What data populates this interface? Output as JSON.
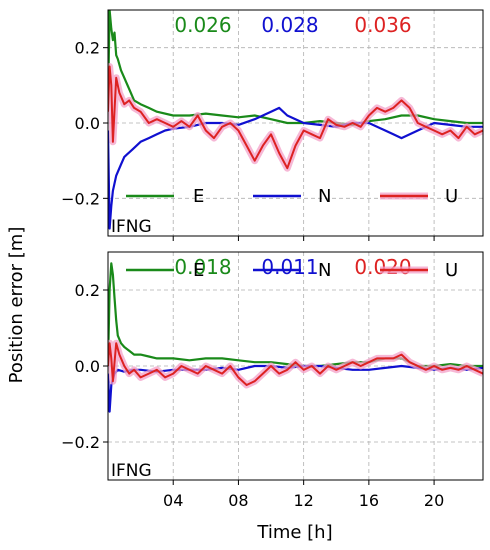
{
  "chart_data": {
    "type": "line",
    "ylabel": "Position error [m]",
    "xlabel": "Time [h]",
    "xlim": [
      0,
      23
    ],
    "ylim": [
      -0.3,
      0.3
    ],
    "x_ticks": [
      4,
      8,
      12,
      16,
      20
    ],
    "x_tick_labels": [
      "04",
      "08",
      "12",
      "16",
      "20"
    ],
    "y_ticks": [
      -0.2,
      0.0,
      0.2
    ],
    "y_tick_labels": [
      "−0.2",
      "0.0",
      "0.2"
    ],
    "grid": true,
    "legend_placement": "lower-center",
    "colors": {
      "E": "#1a8a1a",
      "N": "#1010d0",
      "U": "#dd2222",
      "U_shade": "#f3a0c8"
    },
    "panels": [
      {
        "label": "IFNG",
        "rms": [
          "0.026",
          "0.028",
          "0.036"
        ],
        "series": [
          {
            "name": "E",
            "x": [
              0,
              0.1,
              0.2,
              0.3,
              0.4,
              0.5,
              0.6,
              0.8,
              1,
              1.3,
              1.6,
              2,
              2.5,
              3,
              4,
              5,
              6,
              7,
              8,
              9,
              10,
              11,
              12,
              13,
              14,
              15,
              16,
              17,
              18,
              19,
              20,
              21,
              22,
              23
            ],
            "y": [
              0.05,
              0.3,
              0.25,
              0.22,
              0.24,
              0.18,
              0.17,
              0.14,
              0.12,
              0.09,
              0.06,
              0.05,
              0.04,
              0.03,
              0.02,
              0.02,
              0.025,
              0.02,
              0.015,
              0.02,
              0.01,
              0.0,
              0.0,
              0.005,
              0.0,
              -0.005,
              0.005,
              0.01,
              0.02,
              0.02,
              0.01,
              0.005,
              0.0,
              0.0
            ]
          },
          {
            "name": "N",
            "x": [
              0,
              0.1,
              0.2,
              0.3,
              0.5,
              0.8,
              1,
              1.5,
              2,
              2.5,
              3,
              3.5,
              4,
              5,
              6,
              7,
              8,
              9,
              10,
              10.5,
              11,
              12,
              13,
              14,
              15,
              16,
              17,
              17.5,
              18,
              19,
              20,
              21,
              22,
              23
            ],
            "y": [
              -0.02,
              -0.28,
              -0.22,
              -0.18,
              -0.14,
              -0.11,
              -0.09,
              -0.07,
              -0.05,
              -0.04,
              -0.03,
              -0.02,
              -0.015,
              -0.01,
              0.0,
              0.0,
              -0.005,
              0.01,
              0.03,
              0.04,
              0.02,
              0.0,
              -0.005,
              -0.01,
              0.0,
              0.0,
              -0.02,
              -0.03,
              -0.04,
              -0.02,
              0.0,
              -0.005,
              -0.01,
              -0.01
            ]
          },
          {
            "name": "U",
            "x": [
              0,
              0.1,
              0.2,
              0.3,
              0.5,
              0.7,
              1,
              1.3,
              1.6,
              2,
              2.5,
              3,
              3.5,
              4,
              4.5,
              5,
              5.5,
              6,
              6.5,
              7,
              7.5,
              8,
              8.5,
              9,
              9.5,
              10,
              10.5,
              11,
              11.5,
              12,
              12.5,
              13,
              13.5,
              14,
              14.5,
              15,
              15.5,
              16,
              16.5,
              17,
              17.5,
              18,
              18.5,
              19,
              19.5,
              20,
              20.5,
              21,
              21.5,
              22,
              22.5,
              23
            ],
            "y": [
              0.03,
              0.15,
              0.1,
              -0.05,
              0.12,
              0.08,
              0.05,
              0.06,
              0.04,
              0.03,
              0.0,
              0.01,
              0.0,
              -0.01,
              0.005,
              -0.01,
              0.02,
              -0.02,
              -0.04,
              -0.01,
              0.0,
              -0.02,
              -0.06,
              -0.1,
              -0.06,
              -0.03,
              -0.08,
              -0.12,
              -0.06,
              -0.02,
              -0.03,
              -0.04,
              0.01,
              -0.005,
              -0.01,
              0.0,
              -0.01,
              0.02,
              0.04,
              0.03,
              0.04,
              0.06,
              0.04,
              0.0,
              -0.01,
              -0.02,
              -0.03,
              -0.02,
              -0.04,
              -0.01,
              -0.03,
              -0.02
            ]
          }
        ]
      },
      {
        "label": "IFNG",
        "rms": [
          "0.018",
          "0.011",
          "0.020"
        ],
        "series": [
          {
            "name": "E",
            "x": [
              0,
              0.1,
              0.2,
              0.3,
              0.4,
              0.5,
              0.6,
              0.8,
              1,
              1.3,
              1.6,
              2,
              2.5,
              3,
              4,
              5,
              6,
              7,
              8,
              9,
              10,
              11,
              12,
              13,
              14,
              15,
              16,
              17,
              18,
              19,
              20,
              21,
              22,
              23
            ],
            "y": [
              0.0,
              0.2,
              0.27,
              0.24,
              0.18,
              0.12,
              0.08,
              0.06,
              0.05,
              0.04,
              0.03,
              0.03,
              0.025,
              0.02,
              0.02,
              0.015,
              0.02,
              0.02,
              0.015,
              0.01,
              0.01,
              0.005,
              0.0,
              0.0,
              0.005,
              0.01,
              0.01,
              0.02,
              0.02,
              0.0,
              0.0,
              0.005,
              0.0,
              0.0
            ]
          },
          {
            "name": "N",
            "x": [
              0,
              0.1,
              0.2,
              0.4,
              0.6,
              1,
              1.5,
              2,
              3,
              4,
              5,
              6,
              7,
              8,
              9,
              10,
              11,
              12,
              13,
              14,
              15,
              16,
              17,
              18,
              19,
              20,
              21,
              22,
              23
            ],
            "y": [
              -0.02,
              -0.12,
              -0.05,
              -0.02,
              -0.01,
              -0.015,
              -0.01,
              -0.01,
              -0.015,
              -0.01,
              -0.01,
              -0.01,
              -0.005,
              -0.01,
              0.0,
              0.0,
              -0.005,
              0.0,
              0.0,
              -0.005,
              -0.01,
              -0.01,
              -0.005,
              0.0,
              -0.005,
              -0.01,
              -0.005,
              -0.01,
              -0.005
            ]
          },
          {
            "name": "U",
            "x": [
              0,
              0.1,
              0.2,
              0.3,
              0.5,
              0.7,
              1,
              1.3,
              1.6,
              2,
              2.5,
              3,
              3.5,
              4,
              4.5,
              5,
              5.5,
              6,
              6.5,
              7,
              7.5,
              8,
              8.5,
              9,
              9.5,
              10,
              10.5,
              11,
              11.5,
              12,
              12.5,
              13,
              13.5,
              14,
              14.5,
              15,
              15.5,
              16,
              16.5,
              17,
              17.5,
              18,
              18.5,
              19,
              19.5,
              20,
              20.5,
              21,
              21.5,
              22,
              22.5,
              23
            ],
            "y": [
              0.0,
              0.06,
              0.02,
              -0.04,
              0.06,
              0.03,
              0.0,
              -0.02,
              -0.01,
              -0.03,
              -0.02,
              -0.01,
              -0.03,
              -0.02,
              0.0,
              -0.01,
              -0.02,
              0.0,
              -0.01,
              -0.02,
              0.0,
              -0.03,
              -0.05,
              -0.04,
              -0.02,
              0.0,
              -0.02,
              -0.01,
              0.01,
              -0.01,
              0.0,
              -0.02,
              0.0,
              -0.01,
              0.0,
              0.01,
              0.0,
              0.01,
              0.02,
              0.02,
              0.02,
              0.03,
              0.01,
              0.0,
              -0.01,
              0.0,
              -0.01,
              -0.005,
              -0.01,
              0.0,
              -0.01,
              -0.02
            ]
          }
        ]
      }
    ]
  }
}
